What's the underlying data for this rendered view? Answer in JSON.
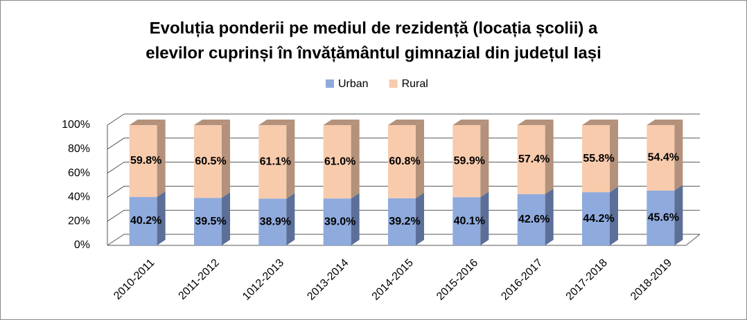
{
  "chart_data": {
    "type": "bar3d_stacked",
    "title": "Evoluția ponderii pe mediul de rezidență (locația școlii) a",
    "subtitle": "elevilor cuprinși în  învățământul gimnazial din județul Iași",
    "categories": [
      "2010-2011",
      "2011-2012",
      "1012-2013",
      "2013-2014",
      "2014-2015",
      "2015-2016",
      "2016-2017",
      "2017-2018",
      "2018-2019"
    ],
    "series": [
      {
        "name": "Urban",
        "color": "#8faadc",
        "side_color": "#5c6f99",
        "values": [
          40.2,
          39.5,
          38.9,
          39.0,
          39.2,
          40.1,
          42.6,
          44.2,
          45.6
        ],
        "value_labels": [
          "40.2%",
          "39.5%",
          "38.9%",
          "39.0%",
          "39.2%",
          "40.1%",
          "42.6%",
          "44.2%",
          "45.6%"
        ]
      },
      {
        "name": "Rural",
        "color": "#f8cbad",
        "side_color": "#b3917a",
        "values": [
          59.8,
          60.5,
          61.1,
          61.0,
          60.8,
          59.9,
          57.4,
          55.8,
          54.4
        ],
        "value_labels": [
          "59.8%",
          "60.5%",
          "61.1%",
          "61.0%",
          "60.8%",
          "59.9%",
          "57.4%",
          "55.8%",
          "54.4%"
        ]
      }
    ],
    "ylim": [
      0,
      100
    ],
    "yticks": [
      {
        "value": 0,
        "label": "0%"
      },
      {
        "value": 20,
        "label": "20%"
      },
      {
        "value": 40,
        "label": "40%"
      },
      {
        "value": 60,
        "label": "60%"
      },
      {
        "value": 80,
        "label": "80%"
      },
      {
        "value": 100,
        "label": "100%"
      }
    ],
    "grid": true,
    "legend": "top"
  }
}
